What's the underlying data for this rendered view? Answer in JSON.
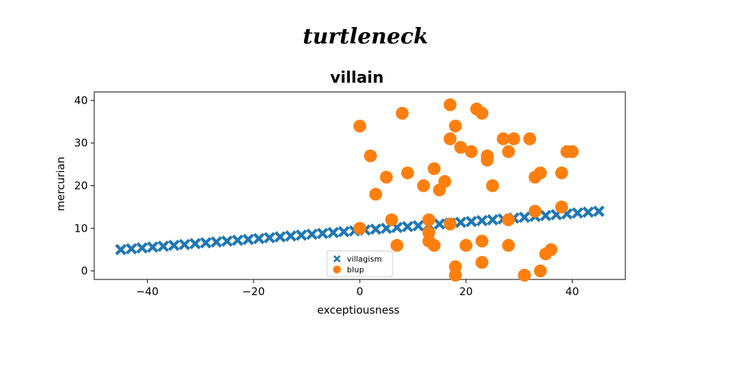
{
  "suptitle": "turtleneck",
  "chart_data": {
    "type": "scatter",
    "title": "villain",
    "xlabel": "exceptiousness",
    "ylabel": "mercurian",
    "xlim": [
      -50,
      50
    ],
    "ylim": [
      -2,
      42
    ],
    "xticks": [
      -40,
      -20,
      0,
      20,
      40
    ],
    "yticks": [
      0,
      10,
      20,
      30,
      40
    ],
    "xtick_labels": [
      "−40",
      "−20",
      "0",
      "20",
      "40"
    ],
    "ytick_labels": [
      "0",
      "10",
      "20",
      "30",
      "40"
    ],
    "grid": false,
    "legend": {
      "placement": "lower center"
    },
    "series": [
      {
        "name": "villagism",
        "marker": "X",
        "color": "#1f77b4",
        "x": [
          -45,
          -43,
          -41,
          -39,
          -37,
          -35,
          -33,
          -31,
          -29,
          -27,
          -25,
          -23,
          -21,
          -19,
          -17,
          -15,
          -13,
          -11,
          -9,
          -7,
          -5,
          -3,
          -1,
          1,
          3,
          5,
          7,
          9,
          11,
          13,
          15,
          17,
          19,
          21,
          23,
          25,
          27,
          29,
          31,
          33,
          35,
          37,
          39,
          41,
          43,
          45
        ],
        "y": [
          5.0,
          5.2,
          5.4,
          5.6,
          5.8,
          6.0,
          6.2,
          6.4,
          6.6,
          6.8,
          7.0,
          7.2,
          7.4,
          7.6,
          7.8,
          8.0,
          8.2,
          8.4,
          8.6,
          8.8,
          9.0,
          9.2,
          9.4,
          9.6,
          9.8,
          10.0,
          10.2,
          10.4,
          10.6,
          10.8,
          11.0,
          11.2,
          11.4,
          11.6,
          11.8,
          12.0,
          12.2,
          12.4,
          12.6,
          12.8,
          13.0,
          13.2,
          13.4,
          13.6,
          13.8,
          14.0
        ]
      },
      {
        "name": "blup",
        "marker": "o",
        "color": "#ff7f0e",
        "x": [
          0,
          2,
          3,
          5,
          7,
          8,
          9,
          12,
          13,
          14,
          15,
          16,
          17,
          17,
          18,
          18,
          19,
          20,
          21,
          22,
          23,
          23,
          24,
          24,
          25,
          27,
          28,
          28,
          28,
          29,
          32,
          33,
          33,
          34,
          35,
          38,
          38,
          39,
          40,
          0,
          6,
          13,
          13,
          14,
          17,
          23,
          31,
          34,
          36,
          18
        ],
        "y": [
          34,
          27,
          18,
          22,
          6,
          37,
          23,
          20,
          12,
          24,
          19,
          21,
          39,
          31,
          34,
          1,
          29,
          6,
          28,
          38,
          37,
          2,
          27,
          26,
          20,
          31,
          28,
          12,
          6,
          31,
          31,
          22,
          14,
          23,
          4,
          23,
          15,
          28,
          28,
          10,
          12,
          9,
          7,
          6,
          11,
          7,
          -1,
          0,
          5,
          -1
        ]
      }
    ]
  }
}
